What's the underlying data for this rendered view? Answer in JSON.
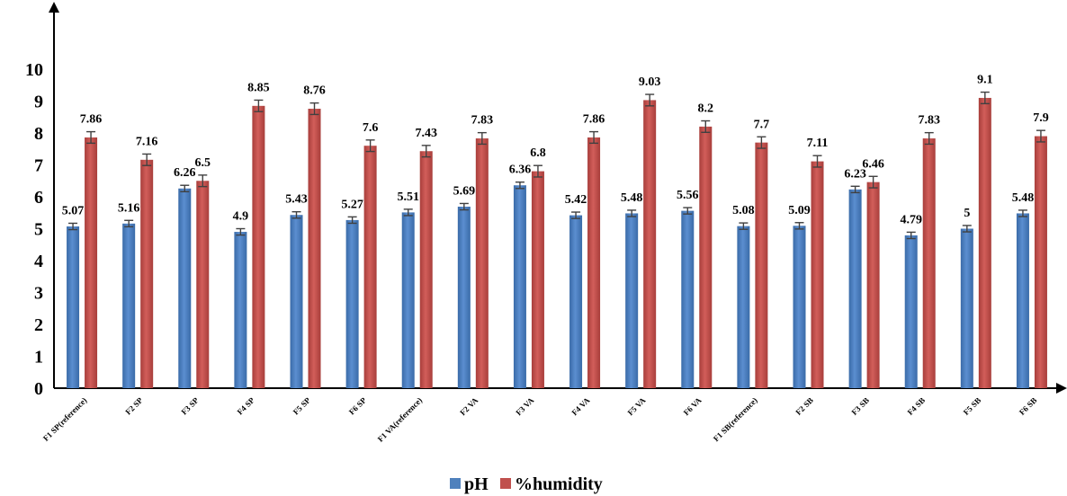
{
  "chart_data": {
    "type": "bar",
    "title": "",
    "xlabel": "",
    "ylabel": "",
    "ylim": [
      0,
      10
    ],
    "yticks": [
      0,
      1,
      2,
      3,
      4,
      5,
      6,
      7,
      8,
      9,
      10
    ],
    "grid": false,
    "legend_position": "bottom",
    "error_bars": true,
    "categories": [
      "F1 SP(reference)",
      "F2 SP",
      "F3 SP",
      "F4 SP",
      "F5 SP",
      "F6 SP",
      "F1 VA(reference)",
      "F2 VA",
      "F3 VA",
      "F4 VA",
      "F5 VA",
      "F6 VA",
      "F1 SB(reference)",
      "F2 SB",
      "F3 SB",
      "F4 SB",
      "F5 SB",
      "F6 SB"
    ],
    "series": [
      {
        "name": "pH",
        "color": "#4F81BD",
        "values": [
          5.07,
          5.16,
          6.26,
          4.9,
          5.43,
          5.27,
          5.51,
          5.69,
          6.36,
          5.42,
          5.48,
          5.56,
          5.08,
          5.09,
          6.23,
          4.79,
          5,
          5.48
        ]
      },
      {
        "name": "%humidity",
        "color": "#C0504D",
        "values": [
          7.86,
          7.16,
          6.5,
          8.85,
          8.76,
          7.6,
          7.43,
          7.83,
          6.8,
          7.86,
          9.03,
          8.2,
          7.7,
          7.11,
          6.46,
          7.83,
          9.1,
          7.9
        ]
      }
    ]
  }
}
